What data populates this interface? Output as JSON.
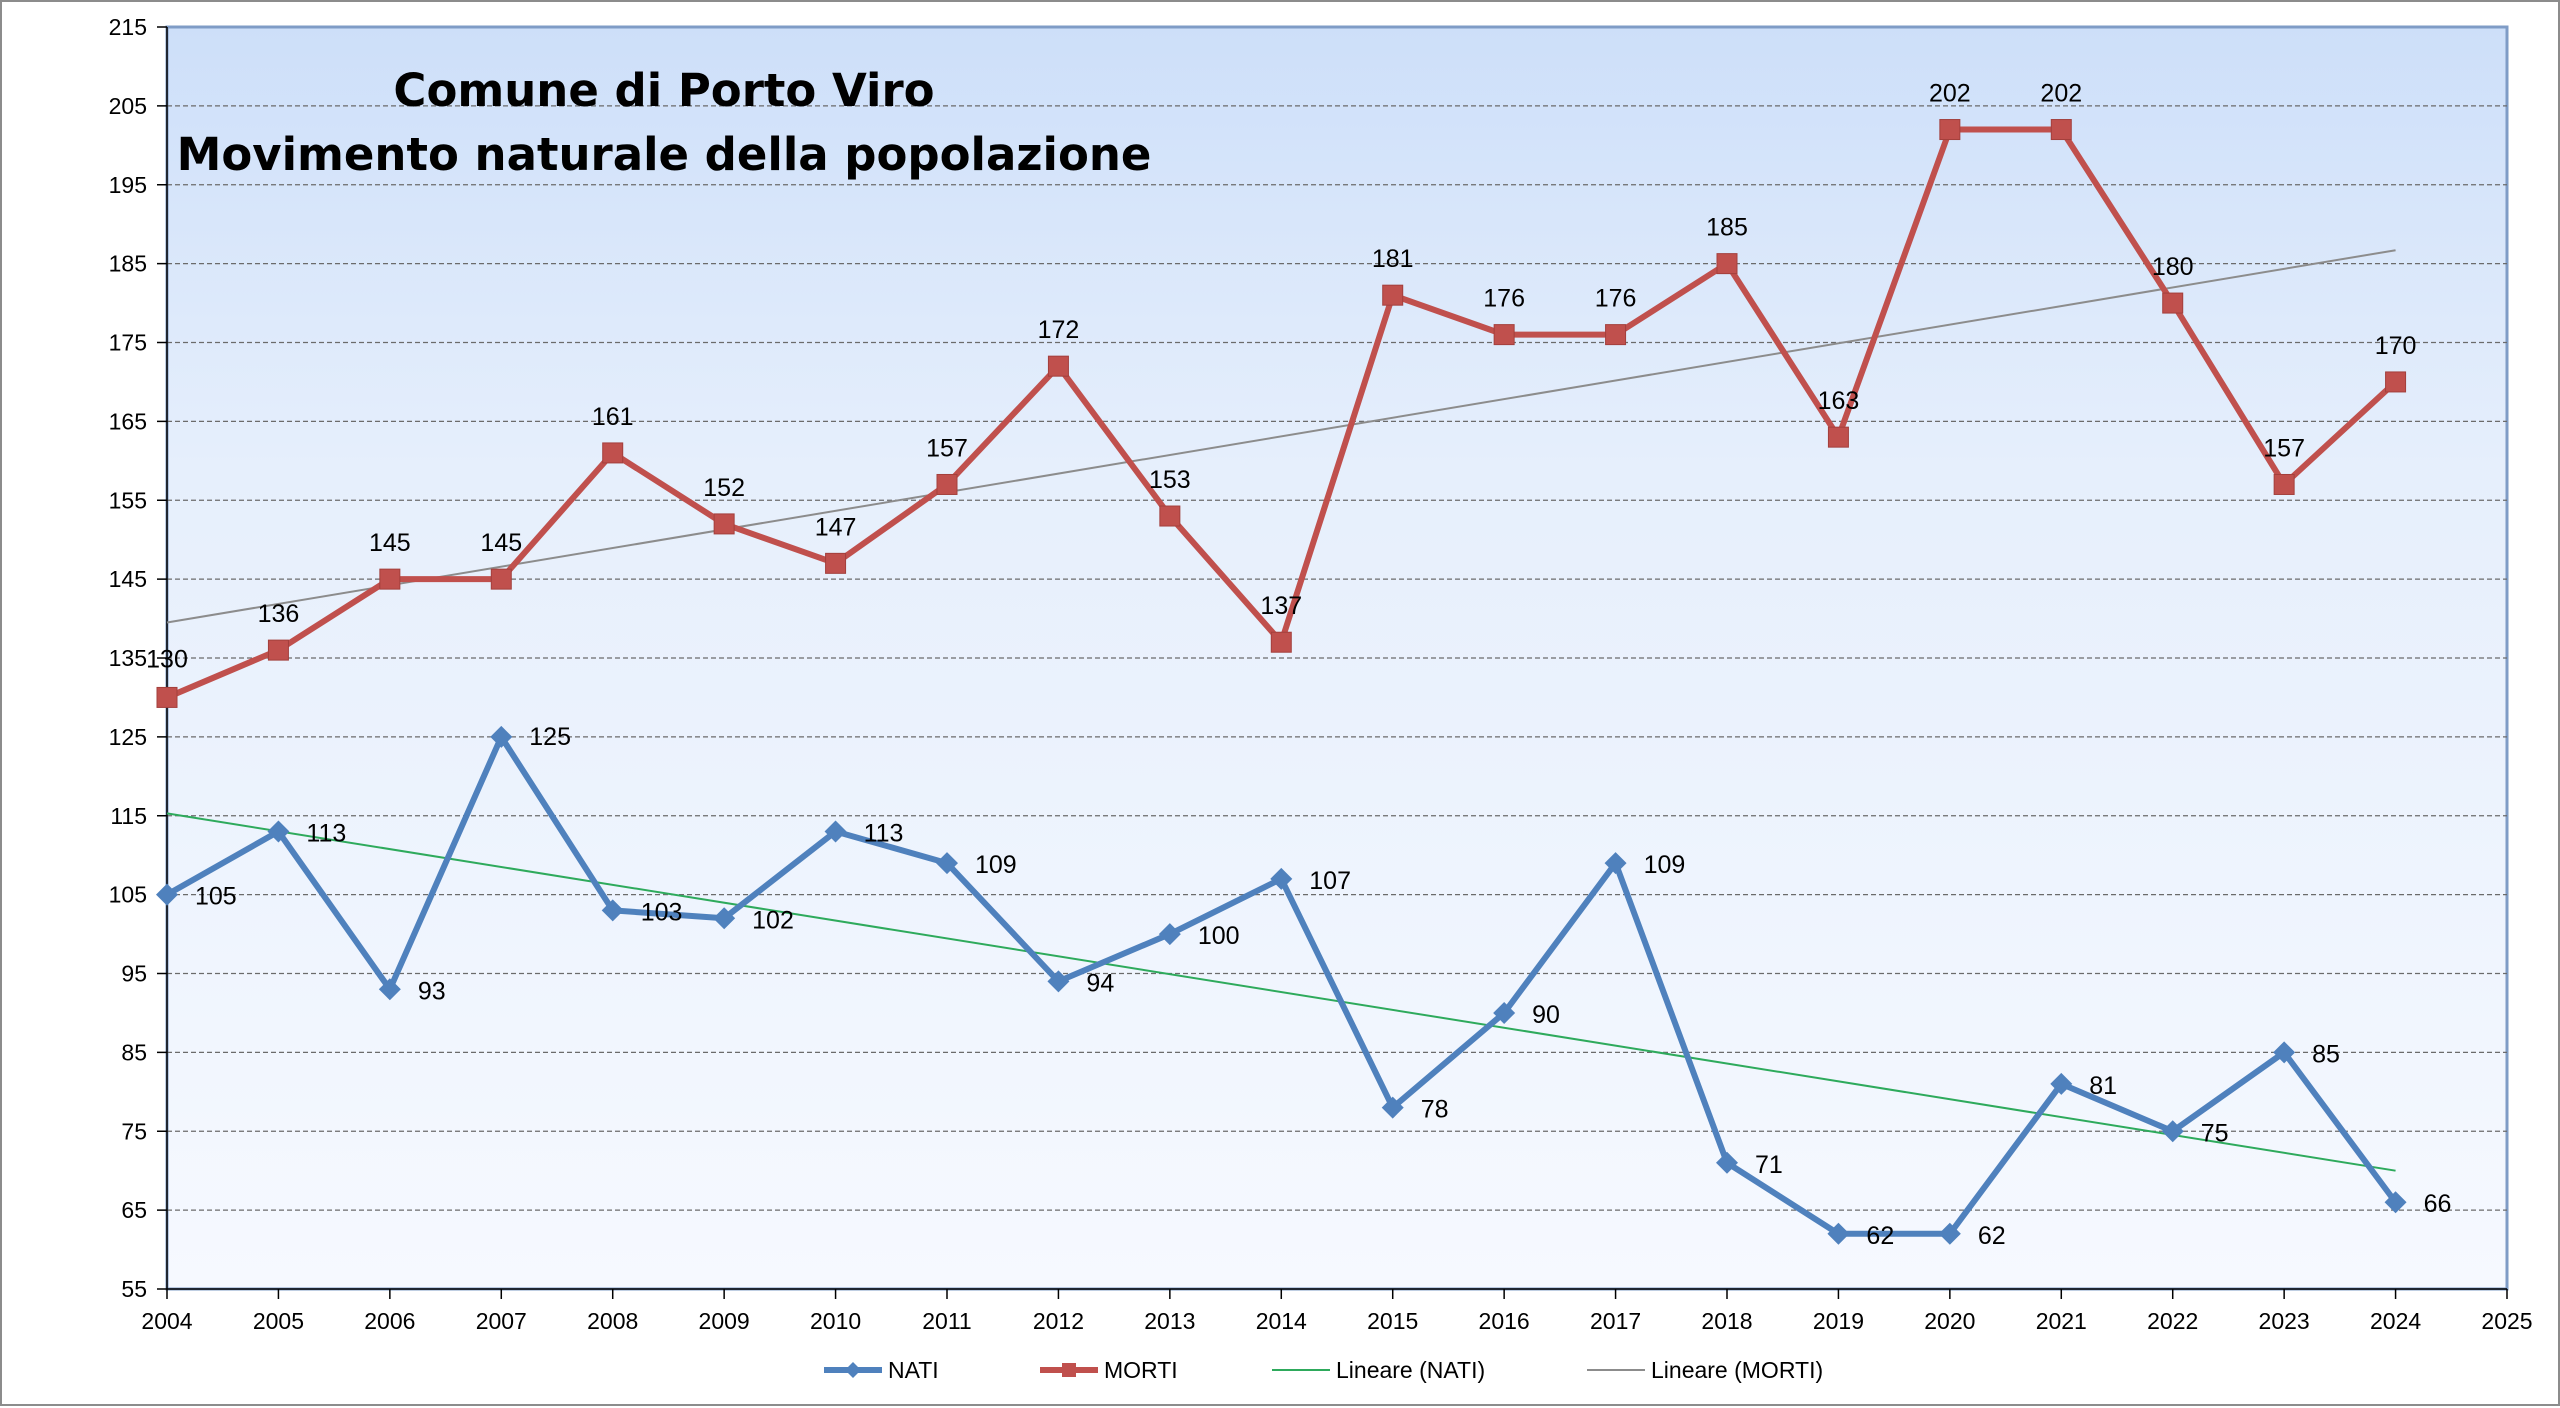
{
  "chart_data": {
    "type": "line",
    "title": [
      "Comune di Porto Viro",
      "Movimento naturale della popolazione"
    ],
    "x": [
      2004,
      2005,
      2006,
      2007,
      2008,
      2009,
      2010,
      2011,
      2012,
      2013,
      2014,
      2015,
      2016,
      2017,
      2018,
      2019,
      2020,
      2021,
      2022,
      2023,
      2024
    ],
    "xlim": [
      2004,
      2025
    ],
    "x_ticks": [
      2004,
      2005,
      2006,
      2007,
      2008,
      2009,
      2010,
      2011,
      2012,
      2013,
      2014,
      2015,
      2016,
      2017,
      2018,
      2019,
      2020,
      2021,
      2022,
      2023,
      2024,
      2025
    ],
    "ylim": [
      55,
      215
    ],
    "y_ticks": [
      55,
      65,
      75,
      85,
      95,
      105,
      115,
      125,
      135,
      145,
      155,
      165,
      175,
      185,
      195,
      205,
      215
    ],
    "grid": true,
    "legend_position": "bottom",
    "series": [
      {
        "name": "NATI",
        "color": "#4f81bd",
        "marker": "diamond",
        "values": [
          105,
          113,
          93,
          125,
          103,
          102,
          113,
          109,
          94,
          100,
          107,
          78,
          90,
          109,
          71,
          62,
          62,
          81,
          75,
          85,
          66
        ]
      },
      {
        "name": "MORTI",
        "color": "#c0504d",
        "marker": "square",
        "values": [
          130,
          136,
          145,
          145,
          161,
          152,
          147,
          157,
          172,
          153,
          137,
          181,
          176,
          176,
          185,
          163,
          202,
          202,
          180,
          157,
          170
        ]
      }
    ],
    "trendlines": [
      {
        "name": "Lineare (NATI)",
        "color": "#2eaa5c",
        "from": [
          2004,
          115.3
        ],
        "to": [
          2024,
          70
        ]
      },
      {
        "name": "Lineare (MORTI)",
        "color": "#8c8c8c",
        "from": [
          2004,
          139.5
        ],
        "to": [
          2024,
          186.7
        ]
      }
    ]
  }
}
